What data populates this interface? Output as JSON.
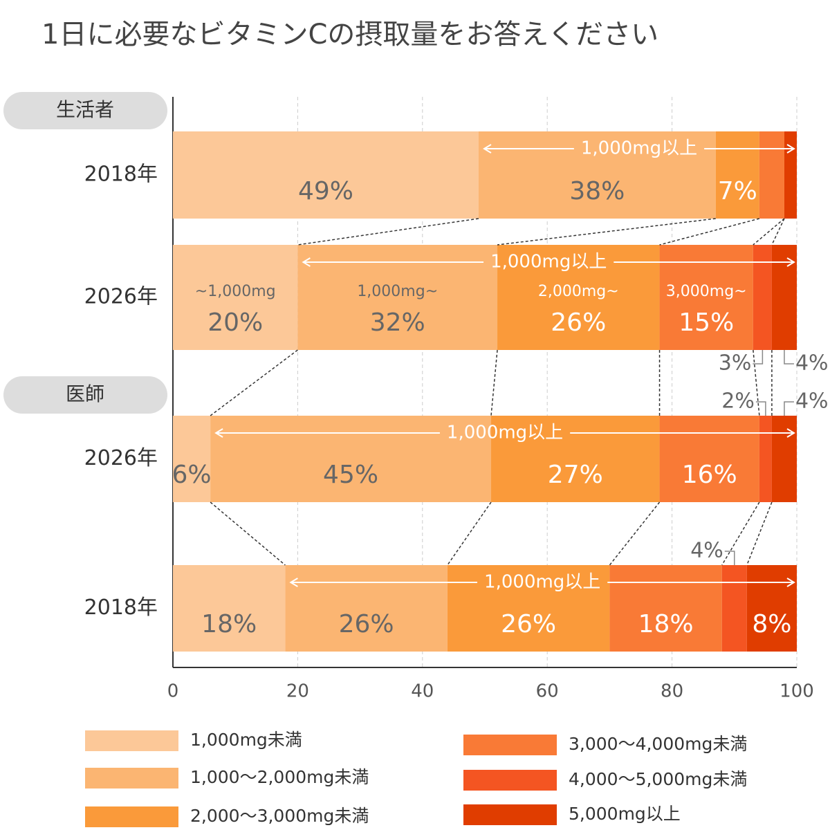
{
  "chart_data": {
    "type": "stacked_barh",
    "title": "1日に必要なビタミンCの摂取量をお答えください",
    "groups": [
      {
        "name": "生活者",
        "size": 2
      },
      {
        "name": "医師",
        "size": 2
      }
    ],
    "categories": [
      "2018年",
      "2026年",
      "2026年",
      "2018年"
    ],
    "series": [
      {
        "name": "1,000mg未満",
        "color": "#fcc898",
        "values": [
          49,
          20,
          6,
          18
        ],
        "value_labels": [
          "49%",
          "20%",
          "6%",
          "18%"
        ]
      },
      {
        "name": "1,000〜2,000mg未満",
        "color": "#fbb572",
        "values": [
          38,
          32,
          45,
          26
        ],
        "value_labels": [
          "38%",
          "32%",
          "45%",
          "26%"
        ]
      },
      {
        "name": "2,000〜3,000mg未満",
        "color": "#fa9a3a",
        "values": [
          7,
          26,
          27,
          26
        ],
        "value_labels": [
          "7%",
          "26%",
          "27%",
          "26%"
        ]
      },
      {
        "name": "3,000〜4,000mg未満",
        "color": "#f97a36",
        "values": [
          4,
          15,
          16,
          18
        ],
        "value_labels": [
          null,
          "15%",
          "16%",
          "18%"
        ]
      },
      {
        "name": "4,000〜5,000mg未満",
        "color": "#f45522",
        "values": [
          null,
          3,
          2,
          4
        ],
        "value_labels": [
          null,
          "3%",
          "2%",
          "4%"
        ]
      },
      {
        "name": "5,000mg以上",
        "color": "#e03d00",
        "values": [
          2,
          4,
          4,
          8
        ],
        "value_labels": [
          null,
          "4%",
          "4%",
          "8%"
        ]
      }
    ],
    "segment_labels": [
      "~1,000mg",
      "1,000mg~",
      "2,000mg~",
      "3,000mg~"
    ],
    "range_labels": [
      "1,000mg以上",
      "1,000mg以上",
      "1,000mg以上",
      "1,000mg以上"
    ],
    "xlim": [
      0,
      100
    ],
    "xticks": [
      0,
      20,
      40,
      60,
      80,
      100
    ],
    "grid": true
  }
}
